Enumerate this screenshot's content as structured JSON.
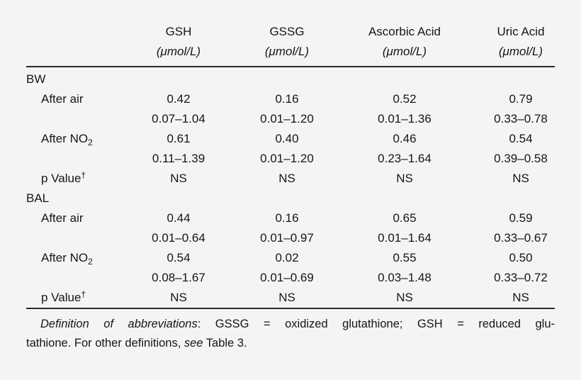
{
  "page": {
    "background_color": "#f4f4f2",
    "text_color": "#161616",
    "rule_color": "#2b2b2b"
  },
  "header": {
    "columns": [
      {
        "name": "GSH",
        "unit": "(μmol/L)"
      },
      {
        "name": "GSSG",
        "unit": "(μmol/L)"
      },
      {
        "name": "Ascorbic Acid",
        "unit": "(μmol/L)"
      },
      {
        "name": "Uric Acid",
        "unit": "(μmol/L)"
      }
    ]
  },
  "body": {
    "rows": [
      {
        "type": "section",
        "label": "BW",
        "values": [
          "",
          "",
          "",
          ""
        ]
      },
      {
        "type": "data",
        "label": "After air",
        "values": [
          "0.42",
          "0.16",
          "0.52",
          "0.79"
        ]
      },
      {
        "type": "range",
        "label": "",
        "values": [
          "0.07–1.04",
          "0.01–1.20",
          "0.01–1.36",
          "0.33–0.78"
        ]
      },
      {
        "type": "data",
        "label": "After NO",
        "label_sub": "2",
        "values": [
          "0.61",
          "0.40",
          "0.46",
          "0.54"
        ]
      },
      {
        "type": "range",
        "label": "",
        "values": [
          "0.11–1.39",
          "0.01–1.20",
          "0.23–1.64",
          "0.39–0.58"
        ]
      },
      {
        "type": "data",
        "label": "p Value",
        "label_sup": "†",
        "values": [
          "NS",
          "NS",
          "NS",
          "NS"
        ]
      },
      {
        "type": "section",
        "label": "BAL",
        "values": [
          "",
          "",
          "",
          ""
        ]
      },
      {
        "type": "data",
        "label": "After air",
        "values": [
          "0.44",
          "0.16",
          "0.65",
          "0.59"
        ]
      },
      {
        "type": "range",
        "label": "",
        "values": [
          "0.01–0.64",
          "0.01–0.97",
          "0.01–1.64",
          "0.33–0.67"
        ]
      },
      {
        "type": "data",
        "label": "After NO",
        "label_sub": "2",
        "values": [
          "0.54",
          "0.02",
          "0.55",
          "0.50"
        ]
      },
      {
        "type": "range",
        "label": "",
        "values": [
          "0.08–1.67",
          "0.01–0.69",
          "0.03–1.48",
          "0.33–0.72"
        ]
      },
      {
        "type": "data",
        "label": "p Value",
        "label_sup": "†",
        "values": [
          "NS",
          "NS",
          "NS",
          "NS"
        ]
      }
    ]
  },
  "footnote": {
    "abbrev_label": "Definition of abbreviations",
    "line1_rest": ": GSSG = oxidized glutathione; GSH = reduced glu-",
    "line2_pre": "tathione. For other definitions, ",
    "see_label": "see",
    "line2_post": " Table 3."
  }
}
